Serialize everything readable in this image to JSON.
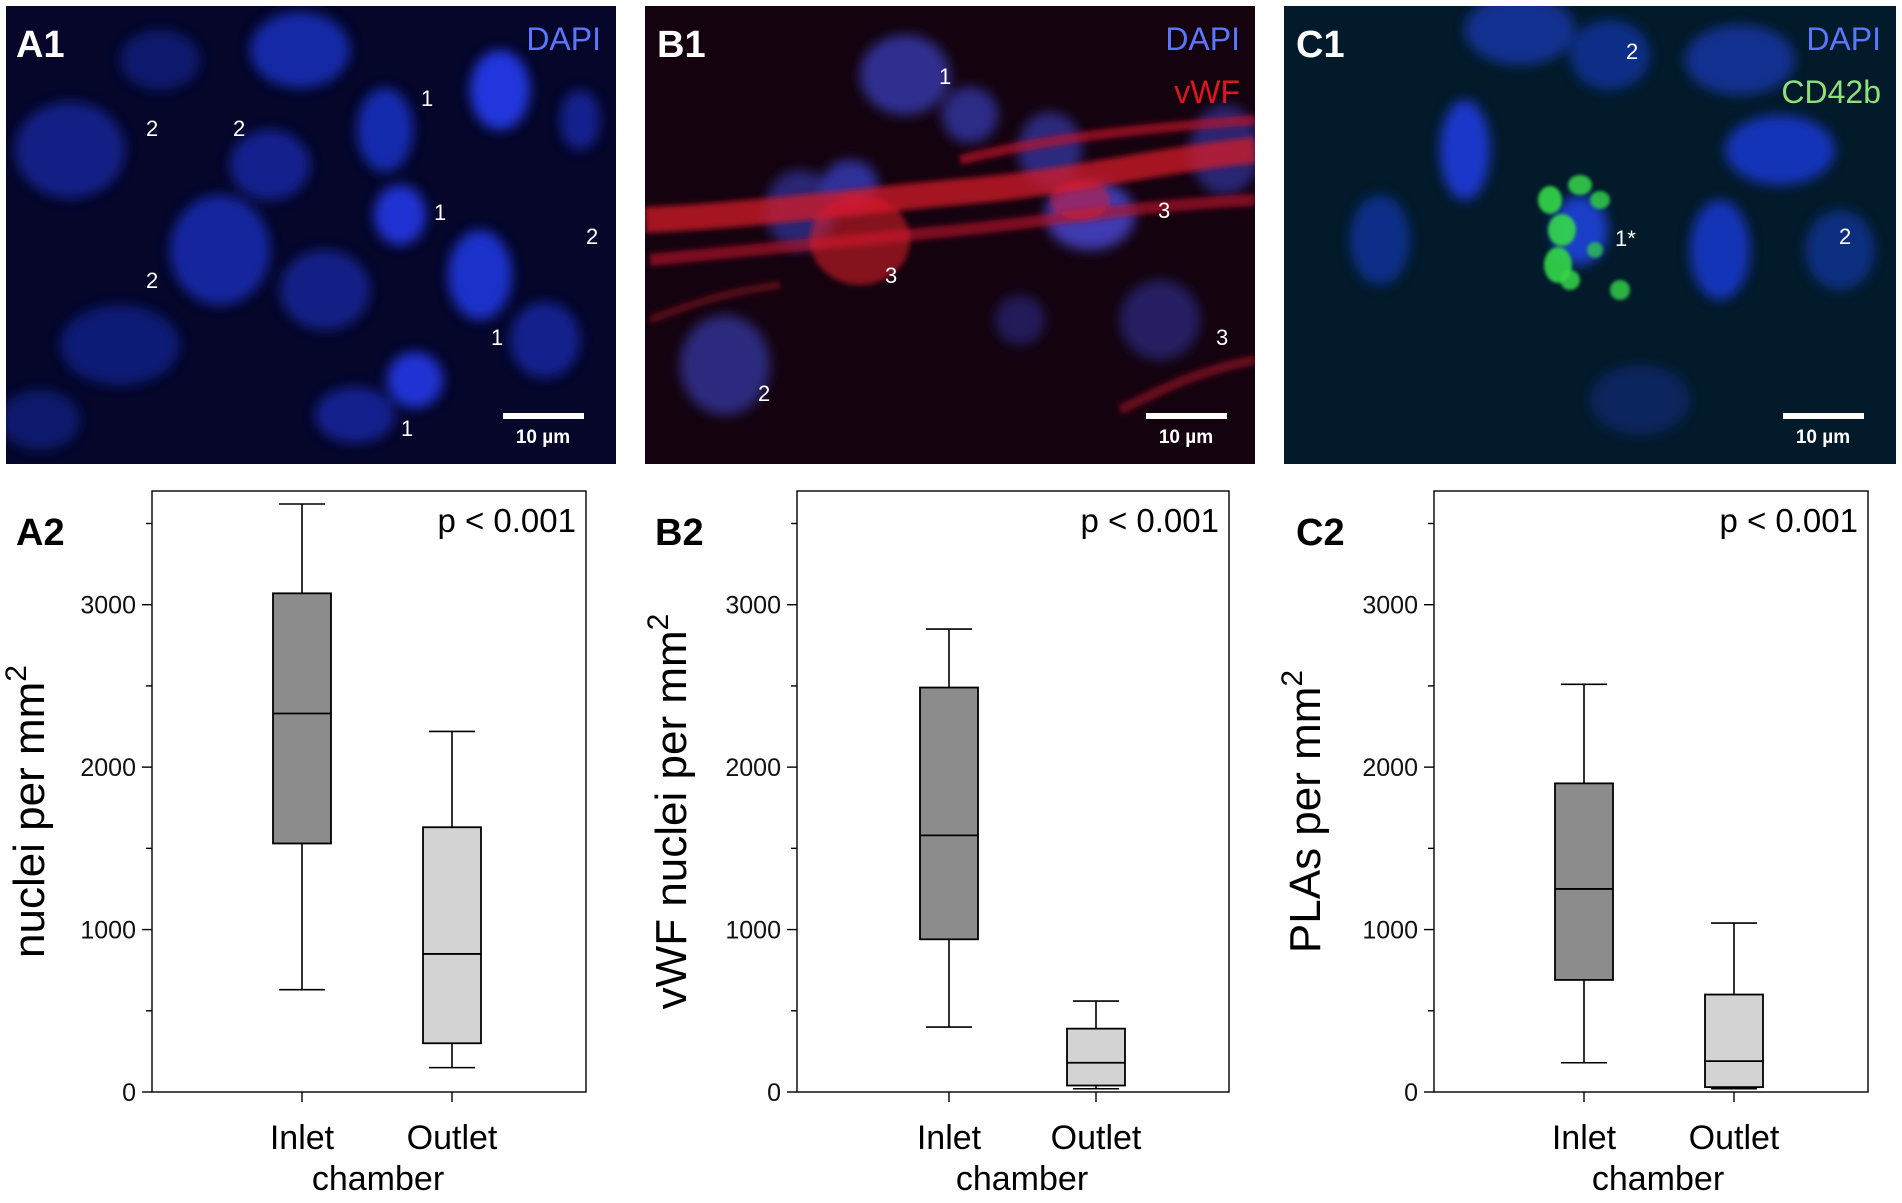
{
  "images": [
    {
      "label": "A1",
      "stains": [
        {
          "text": "DAPI",
          "color": "#5a78ff"
        }
      ],
      "background": "#05062a",
      "nuclei_color": "#1c34d0",
      "annotations": [
        "2",
        "2",
        "1",
        "1",
        "2",
        "2",
        "1",
        "1"
      ],
      "scalebar_label": "10 µm"
    },
    {
      "label": "B1",
      "stains": [
        {
          "text": "DAPI",
          "color": "#5a78ff"
        },
        {
          "text": "vWF",
          "color": "#e0161c"
        }
      ],
      "background": "#14030f",
      "nuclei_color": "#3a42c8",
      "annotations": [
        "1",
        "3",
        "3",
        "3",
        "2"
      ],
      "scalebar_label": "10 µm"
    },
    {
      "label": "C1",
      "stains": [
        {
          "text": "DAPI",
          "color": "#5a78ff"
        },
        {
          "text": "CD42b",
          "color": "#8ee07a"
        }
      ],
      "background": "#031a2a",
      "nuclei_color": "#1a3fd6",
      "annotations": [
        "2",
        "1*",
        "2"
      ],
      "scalebar_label": "10 µm"
    }
  ],
  "chart_data": [
    {
      "type": "box",
      "panel": "A2",
      "ylabel": "nuclei per mm",
      "ylabel_superscript": "2",
      "xlabel": "chamber",
      "annotation": "p < 0.001",
      "ylim": [
        0,
        3700
      ],
      "yticks": [
        0,
        1000,
        2000,
        3000
      ],
      "categories": [
        "Inlet",
        "Outlet"
      ],
      "boxes": [
        {
          "category": "Inlet",
          "whisker_low": 630,
          "q1": 1530,
          "median": 2330,
          "q3": 3070,
          "whisker_high": 3620,
          "color": "#8c8c8c"
        },
        {
          "category": "Outlet",
          "whisker_low": 150,
          "q1": 300,
          "median": 850,
          "q3": 1630,
          "whisker_high": 2220,
          "color": "#d3d3d3"
        }
      ]
    },
    {
      "type": "box",
      "panel": "B2",
      "ylabel": "vWF nuclei per mm",
      "ylabel_superscript": "2",
      "xlabel": "chamber",
      "annotation": "p < 0.001",
      "ylim": [
        0,
        3700
      ],
      "yticks": [
        0,
        1000,
        2000,
        3000
      ],
      "categories": [
        "Inlet",
        "Outlet"
      ],
      "boxes": [
        {
          "category": "Inlet",
          "whisker_low": 400,
          "q1": 940,
          "median": 1580,
          "q3": 2490,
          "whisker_high": 2850,
          "color": "#8c8c8c"
        },
        {
          "category": "Outlet",
          "whisker_low": 20,
          "q1": 40,
          "median": 180,
          "q3": 390,
          "whisker_high": 560,
          "color": "#d3d3d3"
        }
      ]
    },
    {
      "type": "box",
      "panel": "C2",
      "ylabel": "PLAs per mm",
      "ylabel_superscript": "2",
      "xlabel": "chamber",
      "annotation": "p < 0.001",
      "ylim": [
        0,
        3700
      ],
      "yticks": [
        0,
        1000,
        2000,
        3000
      ],
      "categories": [
        "Inlet",
        "Outlet"
      ],
      "boxes": [
        {
          "category": "Inlet",
          "whisker_low": 180,
          "q1": 690,
          "median": 1250,
          "q3": 1900,
          "whisker_high": 2510,
          "color": "#8c8c8c"
        },
        {
          "category": "Outlet",
          "whisker_low": 20,
          "q1": 30,
          "median": 190,
          "q3": 600,
          "whisker_high": 1040,
          "color": "#d3d3d3"
        }
      ]
    }
  ]
}
